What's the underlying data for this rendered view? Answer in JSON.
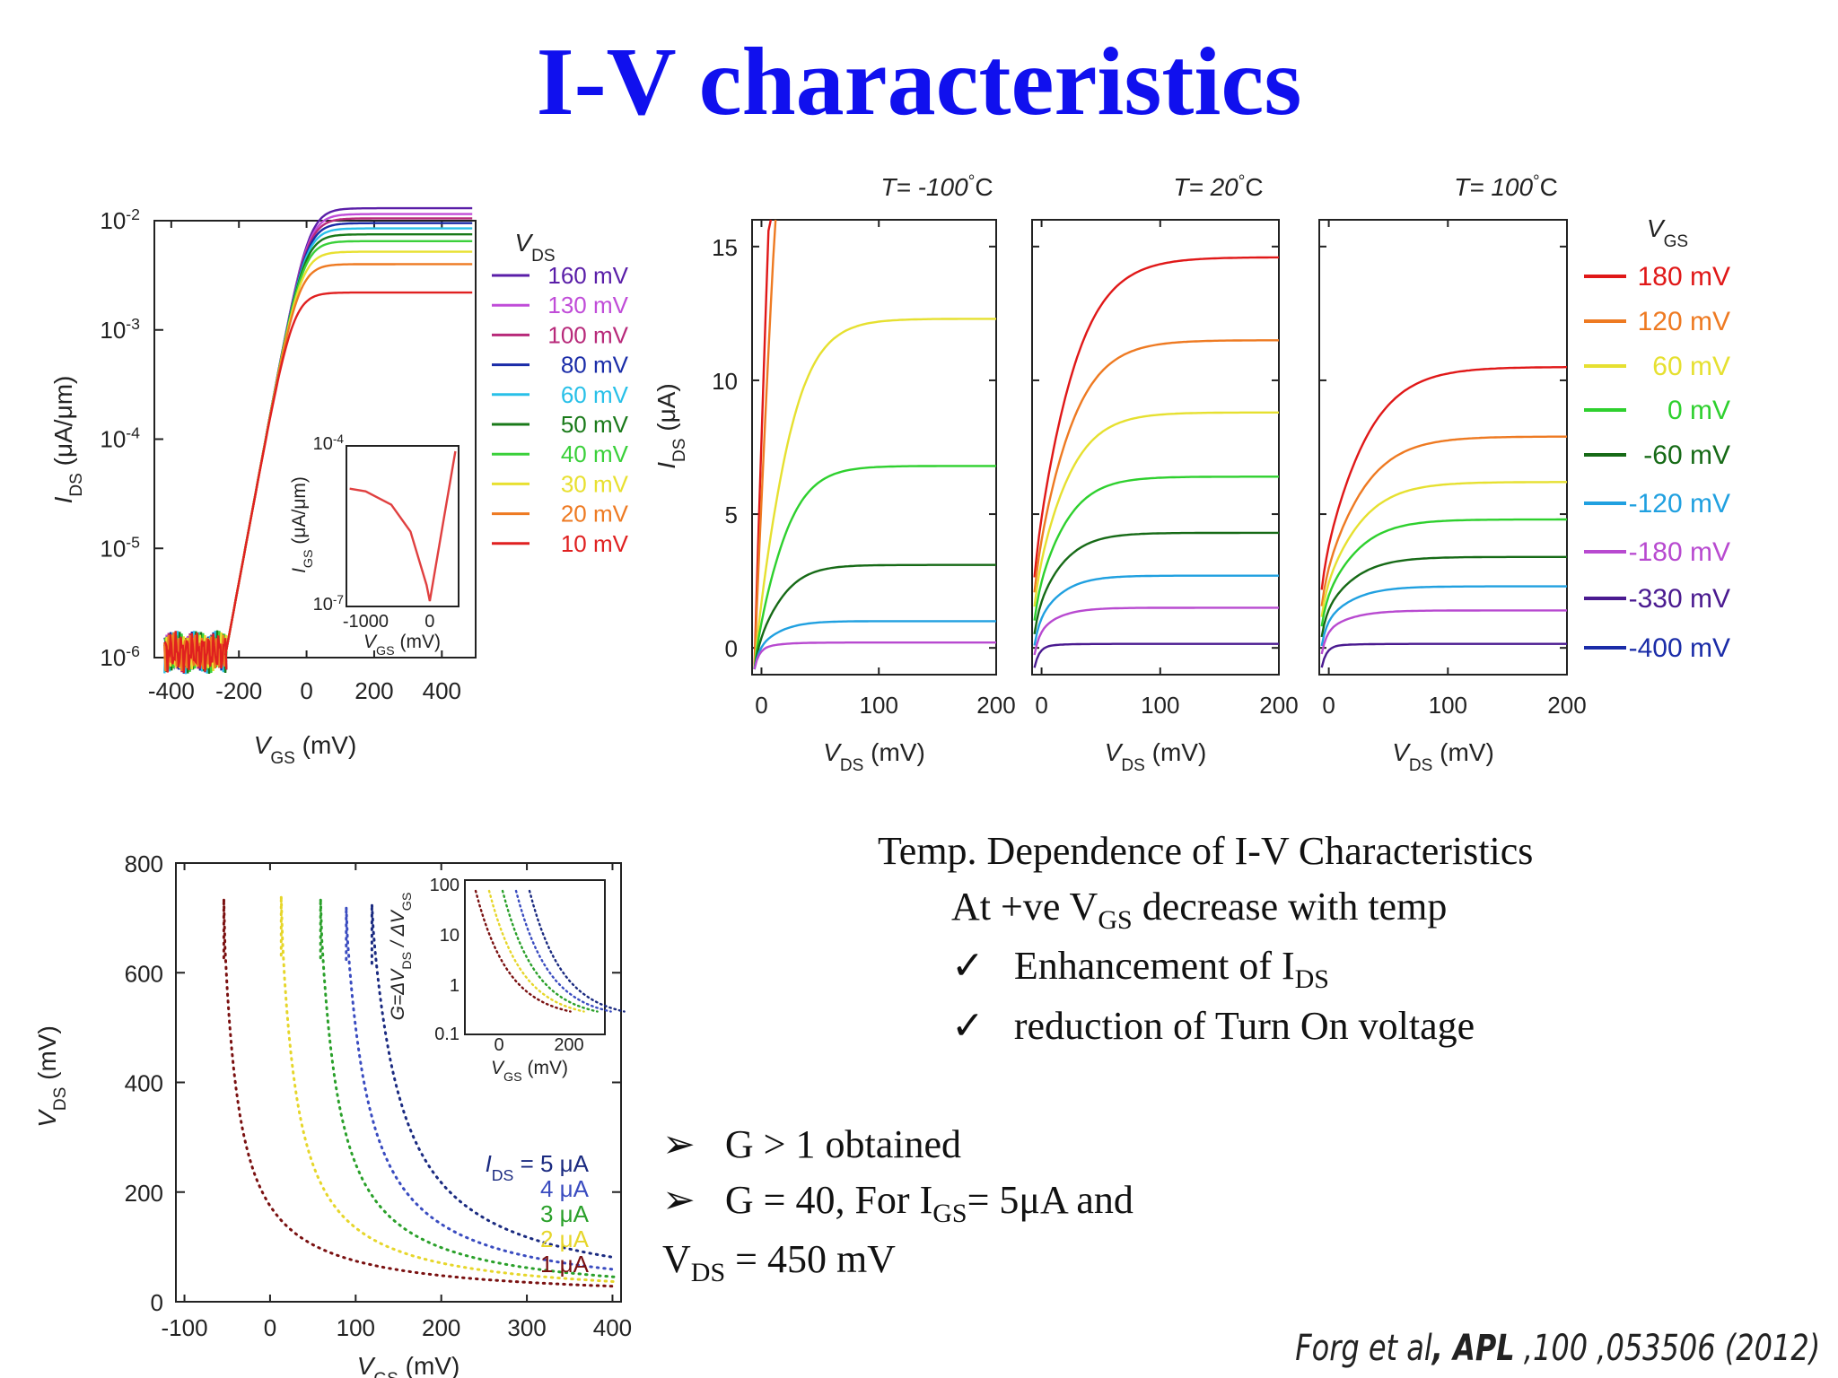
{
  "slide": {
    "title": "I-V characteristics",
    "text_block": {
      "heading": "Temp. Dependence of I-V Characteristics",
      "line1": "At +ve V",
      "line1_sub": "GS",
      "line1_rest": " decrease with temp",
      "check_mark": "✓",
      "check1": "Enhancement of I",
      "check1_sub": "DS",
      "check2": "reduction of Turn On voltage"
    },
    "bullets": {
      "arrow": "➢",
      "b1": "G > 1 obtained",
      "b2_pre": "G = 40, For I",
      "b2_sub": "GS",
      "b2_post": "= 5μA and",
      "b3_pre": "V",
      "b3_sub": "DS",
      "b3_post": " = 450 mV"
    },
    "citation": {
      "authors": "Forg et al",
      "sep": ", ",
      "journal": "APL",
      "rest": " ,100 ,053506 (2012)"
    }
  },
  "chart_data": [
    {
      "id": "transfer",
      "type": "line",
      "scale": "log-y",
      "xlabel": "V",
      "xlabel_sub": "GS",
      "xlabel_unit": " (mV)",
      "ylabel": "I",
      "ylabel_sub": "DS",
      "ylabel_unit": " (μA/μm)",
      "xlim": [
        -450,
        500
      ],
      "ylim": [
        1e-06,
        0.01
      ],
      "xticks": [
        -400,
        -200,
        0,
        200,
        400
      ],
      "xtick_labels": [
        "-400",
        "-200",
        "0",
        "200",
        "400"
      ],
      "yticks": [
        0.01,
        0.001,
        0.0001,
        1e-05,
        1e-06
      ],
      "ytick_labels": [
        "10",
        "10",
        "10",
        "10",
        "10"
      ],
      "ytick_exps": [
        "-2",
        "-3",
        "-4",
        "-5",
        "-6"
      ],
      "legend_title": "V",
      "legend_title_sub": "DS",
      "series": [
        {
          "name": "160 mV",
          "color": "#5a1ea8",
          "ion": 0.013
        },
        {
          "name": "130 mV",
          "color": "#c04cd8",
          "ion": 0.0115
        },
        {
          "name": "100 mV",
          "color": "#b82a7a",
          "ion": 0.0105
        },
        {
          "name": "80 mV",
          "color": "#1a2ca8",
          "ion": 0.0095
        },
        {
          "name": "60 mV",
          "color": "#28c0e8",
          "ion": 0.0085
        },
        {
          "name": "50 mV",
          "color": "#1a7a1a",
          "ion": 0.0075
        },
        {
          "name": "40 mV",
          "color": "#3ad03a",
          "ion": 0.0065
        },
        {
          "name": "30 mV",
          "color": "#e8e030",
          "ion": 0.0052
        },
        {
          "name": "20 mV",
          "color": "#ee7a22",
          "ion": 0.004
        },
        {
          "name": "10 mV",
          "color": "#e02020",
          "ion": 0.0022
        }
      ],
      "inset": {
        "xlabel": "V",
        "xlabel_sub": "GS",
        "xlabel_unit": " (mV)",
        "ylabel": "I",
        "ylabel_sub": "GS",
        "ylabel_unit": " (μA/μm)",
        "xtick_labels": [
          "-1000",
          "0"
        ],
        "ytick_labels": [
          "10",
          "10"
        ],
        "ytick_exps": [
          "-4",
          "-7"
        ],
        "series": [
          {
            "color": "#e04040",
            "x": [
              -1250,
              -1000,
              -600,
              -300,
              -50,
              0,
              200,
              400
            ],
            "logy": [
              -4.8,
              -4.85,
              -5.1,
              -5.6,
              -6.6,
              -6.9,
              -5.5,
              -4.1
            ]
          }
        ]
      }
    },
    {
      "id": "output",
      "type": "line",
      "panels": [
        {
          "title": "T= -100",
          "deg": "°",
          "unit": "C",
          "turn_on": 0,
          "isat": [
            60,
            40,
            12.3,
            6.8,
            3.1,
            1.0,
            0.2,
            null,
            null
          ]
        },
        {
          "title": "T= 20",
          "deg": "°",
          "unit": "C",
          "turn_on": -12,
          "isat": [
            14.6,
            11.5,
            8.8,
            6.4,
            4.3,
            2.7,
            1.5,
            0.15,
            null
          ]
        },
        {
          "title": "T= 100",
          "deg": "°",
          "unit": "C",
          "turn_on": -16,
          "isat": [
            10.5,
            7.9,
            6.2,
            4.8,
            3.4,
            2.3,
            1.4,
            0.15,
            null
          ]
        }
      ],
      "xlabel": "V",
      "xlabel_sub": "DS",
      "xlabel_unit": " (mV)",
      "ylabel": "I",
      "ylabel_sub": "DS",
      "ylabel_unit": " (μA)",
      "xlim": [
        -8,
        200
      ],
      "ylim": [
        -1,
        16
      ],
      "xticks": [
        0,
        100,
        200
      ],
      "xtick_labels": [
        "0",
        "100",
        "200"
      ],
      "yticks": [
        0,
        5,
        10,
        15
      ],
      "ytick_labels": [
        "0",
        "5",
        "10",
        "15"
      ],
      "legend_title": "V",
      "legend_title_sub": "GS",
      "series": [
        {
          "name": "180 mV",
          "color": "#e01818"
        },
        {
          "name": "120 mV",
          "color": "#ee7a22"
        },
        {
          "name": "60 mV",
          "color": "#e6e030"
        },
        {
          "name": "0 mV",
          "color": "#2ed02e"
        },
        {
          "name": "-60 mV",
          "color": "#166a16"
        },
        {
          "name": "-120 mV",
          "color": "#20a0e0"
        },
        {
          "name": "-180 mV",
          "color": "#b84ad0"
        },
        {
          "name": "-330 mV",
          "color": "#4a1a90"
        },
        {
          "name": "-400 mV",
          "color": "#1a2ca8"
        }
      ]
    },
    {
      "id": "vds_vgs",
      "type": "scatter",
      "xlabel": "V",
      "xlabel_sub": "GS",
      "xlabel_unit": " (mV)",
      "ylabel": "V",
      "ylabel_sub": "DS",
      "ylabel_unit": " (mV)",
      "xlim": [
        -110,
        410
      ],
      "ylim": [
        0,
        800
      ],
      "xticks": [
        -100,
        0,
        100,
        200,
        300,
        400
      ],
      "xtick_labels": [
        "-100",
        "0",
        "100",
        "200",
        "300",
        "400"
      ],
      "yticks": [
        0,
        200,
        400,
        600,
        800
      ],
      "ytick_labels": [
        "0",
        "200",
        "400",
        "600",
        "800"
      ],
      "legend_prefix": "I",
      "legend_prefix_sub": "DS",
      "legend_eq": " = ",
      "series": [
        {
          "name": "5 μA",
          "color": "#1a2a80",
          "x0": 118,
          "k": 45,
          "top": 725
        },
        {
          "name": "4 μA",
          "color": "#3a4cc0",
          "x0": 88,
          "k": 35,
          "top": 720
        },
        {
          "name": "3 μA",
          "color": "#2aa02a",
          "x0": 58,
          "k": 28,
          "top": 735
        },
        {
          "name": "2 μA",
          "color": "#e6d62a",
          "x0": 12,
          "k": 25,
          "top": 740
        },
        {
          "name": "1 μA",
          "color": "#7a1010",
          "x0": -55,
          "k": 22,
          "top": 735
        }
      ],
      "inset": {
        "xlabel": "V",
        "xlabel_sub": "GS",
        "xlabel_unit": " (mV)",
        "ylabel": "G=ΔV",
        "ylabel_sub": "DS",
        "ylabel_mid": " / ΔV",
        "ylabel_sub2": "GS",
        "xtick_labels": [
          "0",
          "200"
        ],
        "ytick_labels": [
          "100",
          "10",
          "1",
          "0.1"
        ]
      }
    }
  ]
}
